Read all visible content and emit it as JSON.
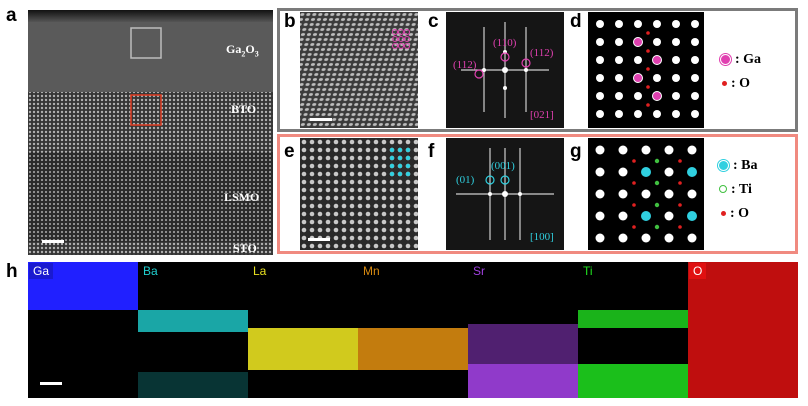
{
  "panel_labels": {
    "a": "a",
    "b": "b",
    "c": "c",
    "d": "d",
    "e": "e",
    "f": "f",
    "g": "g",
    "h": "h"
  },
  "panel_a": {
    "layers": [
      "Ga",
      "2",
      "O",
      "3",
      "BTO",
      "LSMO",
      "STO"
    ]
  },
  "panel_c": {
    "spots": [
      "(112)",
      "(110)",
      "(112)"
    ],
    "zone_axis": "[021]"
  },
  "panel_d": {
    "legend": [
      {
        "symbol_color": "#e040b0",
        "label": ": Ga"
      },
      {
        "symbol_color": "#e02020",
        "label": ": O"
      }
    ]
  },
  "panel_f": {
    "spots": [
      "(01)",
      "(001)"
    ],
    "zone_axis": "[100]"
  },
  "panel_g": {
    "legend": [
      {
        "symbol_color": "#30d0e0",
        "label": ": Ba"
      },
      {
        "symbol_color": "#40c040",
        "label": ": Ti"
      },
      {
        "symbol_color": "#e02020",
        "label": ": O"
      }
    ]
  },
  "panel_h": {
    "maps": [
      {
        "element": "Ga",
        "color": "#2020ff",
        "title_bg": "#1a1ad0"
      },
      {
        "element": "Ba",
        "color": "#20d0d0",
        "title_bg": "#000000"
      },
      {
        "element": "La",
        "color": "#e8e020",
        "title_bg": "#000000"
      },
      {
        "element": "Mn",
        "color": "#d88a10",
        "title_bg": "#000000"
      },
      {
        "element": "Sr",
        "color": "#a040e0",
        "title_bg": "#000000"
      },
      {
        "element": "Ti",
        "color": "#20e020",
        "title_bg": "#000000"
      },
      {
        "element": "O",
        "color": "#e01010",
        "title_bg": "#e01010"
      }
    ]
  }
}
